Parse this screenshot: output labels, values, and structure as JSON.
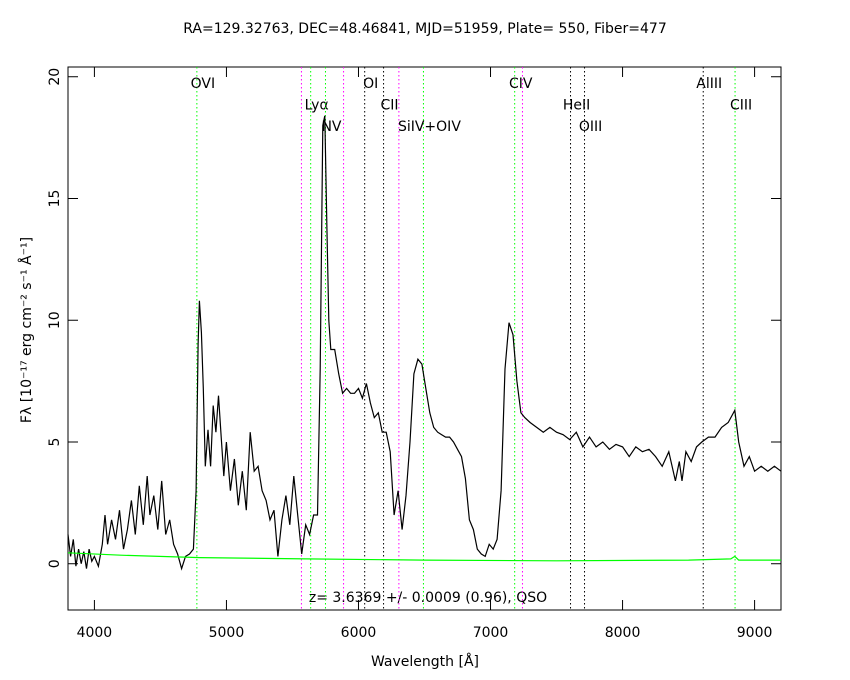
{
  "chart_data": {
    "type": "line",
    "title": "RA=129.32763, DEC=48.46841, MJD=51959, Plate= 550, Fiber=477",
    "x_label": "Wavelength [Å]",
    "y_label": "Fλ [10⁻¹⁷ erg cm⁻² s⁻¹ Å⁻¹]",
    "annotation": "z= 3.6369 +/- 0.0009 (0.96), QSO",
    "xlim": [
      3800,
      9200
    ],
    "ylim": [
      -1.9,
      20.4
    ],
    "xticks": [
      4000,
      5000,
      6000,
      7000,
      8000,
      9000
    ],
    "yticks": [
      0,
      5,
      10,
      15,
      20
    ],
    "series": [
      {
        "color": "#000000",
        "x": [
          3800,
          3820,
          3840,
          3860,
          3880,
          3900,
          3920,
          3940,
          3960,
          3980,
          4000,
          4030,
          4060,
          4080,
          4100,
          4130,
          4160,
          4190,
          4220,
          4250,
          4280,
          4310,
          4340,
          4370,
          4400,
          4420,
          4450,
          4480,
          4510,
          4540,
          4570,
          4600,
          4630,
          4660,
          4690,
          4720,
          4750,
          4770,
          4785,
          4795,
          4810,
          4825,
          4840,
          4860,
          4880,
          4900,
          4920,
          4940,
          4960,
          4980,
          5000,
          5030,
          5060,
          5090,
          5120,
          5150,
          5180,
          5210,
          5240,
          5270,
          5300,
          5330,
          5360,
          5390,
          5420,
          5450,
          5480,
          5510,
          5540,
          5570,
          5600,
          5630,
          5660,
          5690,
          5710,
          5730,
          5745,
          5760,
          5775,
          5790,
          5820,
          5850,
          5880,
          5910,
          5940,
          5970,
          6000,
          6030,
          6060,
          6090,
          6120,
          6150,
          6180,
          6210,
          6240,
          6270,
          6300,
          6330,
          6360,
          6390,
          6420,
          6450,
          6480,
          6510,
          6540,
          6570,
          6600,
          6630,
          6660,
          6690,
          6720,
          6750,
          6780,
          6810,
          6840,
          6870,
          6900,
          6930,
          6960,
          6990,
          7020,
          7050,
          7080,
          7110,
          7140,
          7170,
          7200,
          7230,
          7260,
          7300,
          7350,
          7400,
          7450,
          7500,
          7550,
          7600,
          7650,
          7700,
          7750,
          7800,
          7850,
          7900,
          7950,
          8000,
          8050,
          8100,
          8150,
          8200,
          8250,
          8300,
          8350,
          8400,
          8430,
          8450,
          8480,
          8520,
          8560,
          8600,
          8650,
          8700,
          8750,
          8800,
          8850,
          8880,
          8920,
          8960,
          9000,
          9050,
          9100,
          9150,
          9200
        ],
        "values": [
          1.2,
          0.3,
          1.0,
          -0.1,
          0.6,
          0.0,
          0.5,
          -0.2,
          0.6,
          0.1,
          0.3,
          -0.1,
          0.8,
          2.0,
          0.8,
          1.8,
          1.0,
          2.2,
          0.6,
          1.4,
          2.6,
          1.2,
          3.2,
          1.6,
          3.6,
          2.0,
          2.8,
          1.4,
          3.4,
          1.2,
          1.8,
          0.8,
          0.4,
          -0.2,
          0.3,
          0.4,
          0.6,
          3.0,
          9.0,
          10.8,
          9.5,
          7.2,
          4.0,
          5.5,
          4.0,
          6.5,
          5.4,
          6.9,
          5.2,
          3.6,
          5.0,
          3.0,
          4.3,
          2.4,
          3.8,
          2.2,
          5.4,
          3.8,
          4.0,
          3.0,
          2.6,
          1.8,
          2.2,
          0.3,
          1.8,
          2.8,
          1.6,
          3.6,
          2.0,
          0.4,
          1.6,
          1.2,
          2.0,
          2.0,
          8.0,
          18.0,
          18.4,
          14.0,
          10.0,
          8.8,
          8.8,
          7.8,
          7.0,
          7.2,
          7.0,
          7.0,
          7.2,
          6.8,
          7.4,
          6.6,
          6.0,
          6.2,
          5.4,
          5.4,
          4.6,
          2.0,
          3.0,
          1.4,
          2.8,
          5.0,
          7.8,
          8.4,
          8.2,
          7.2,
          6.2,
          5.6,
          5.4,
          5.3,
          5.2,
          5.2,
          5.0,
          4.7,
          4.4,
          3.5,
          1.8,
          1.4,
          0.6,
          0.4,
          0.3,
          0.8,
          0.6,
          1.0,
          3.0,
          8.0,
          9.9,
          9.4,
          7.5,
          6.2,
          6.0,
          5.8,
          5.6,
          5.4,
          5.6,
          5.4,
          5.3,
          5.1,
          5.4,
          4.8,
          5.2,
          4.8,
          5.0,
          4.7,
          4.9,
          4.8,
          4.4,
          4.8,
          4.6,
          4.7,
          4.4,
          4.0,
          4.6,
          3.4,
          4.2,
          3.4,
          4.6,
          4.2,
          4.8,
          5.0,
          5.2,
          5.2,
          5.6,
          5.8,
          6.3,
          5.0,
          4.0,
          4.4,
          3.8,
          4.0,
          3.8,
          4.0,
          3.8
        ]
      },
      {
        "color": "#00ff00",
        "x": [
          3800,
          4200,
          4800,
          5600,
          6500,
          7500,
          8500,
          8820,
          8850,
          8880,
          9200
        ],
        "values": [
          0.45,
          0.35,
          0.25,
          0.2,
          0.15,
          0.12,
          0.15,
          0.2,
          0.3,
          0.15,
          0.15
        ]
      }
    ],
    "lines": [
      {
        "x": 4776,
        "color": "#00ff00",
        "label": "OVI"
      },
      {
        "x": 5568,
        "color": "#ff00ff"
      },
      {
        "x": 5638,
        "color": "#00ff00",
        "label": "Lyα"
      },
      {
        "x": 5750,
        "color": "#00ff00",
        "label": "NV"
      },
      {
        "x": 5887,
        "color": "#ff00ff"
      },
      {
        "x": 6047,
        "color": "#000000",
        "label": "OI"
      },
      {
        "x": 6190,
        "color": "#000000",
        "label": "CII"
      },
      {
        "x": 6306,
        "color": "#ff00ff"
      },
      {
        "x": 6492,
        "color": "#00ff00",
        "label": "SiIV+OIV"
      },
      {
        "x": 7183,
        "color": "#00ff00",
        "label": "CIV"
      },
      {
        "x": 7242,
        "color": "#ff00ff"
      },
      {
        "x": 7606,
        "color": "#000000",
        "label": "HeII"
      },
      {
        "x": 7712,
        "color": "#000000",
        "label": "OIII"
      },
      {
        "x": 8611,
        "color": "#000000",
        "label": "AlIII"
      },
      {
        "x": 8852,
        "color": "#00ff00",
        "label": "CIII"
      }
    ]
  }
}
